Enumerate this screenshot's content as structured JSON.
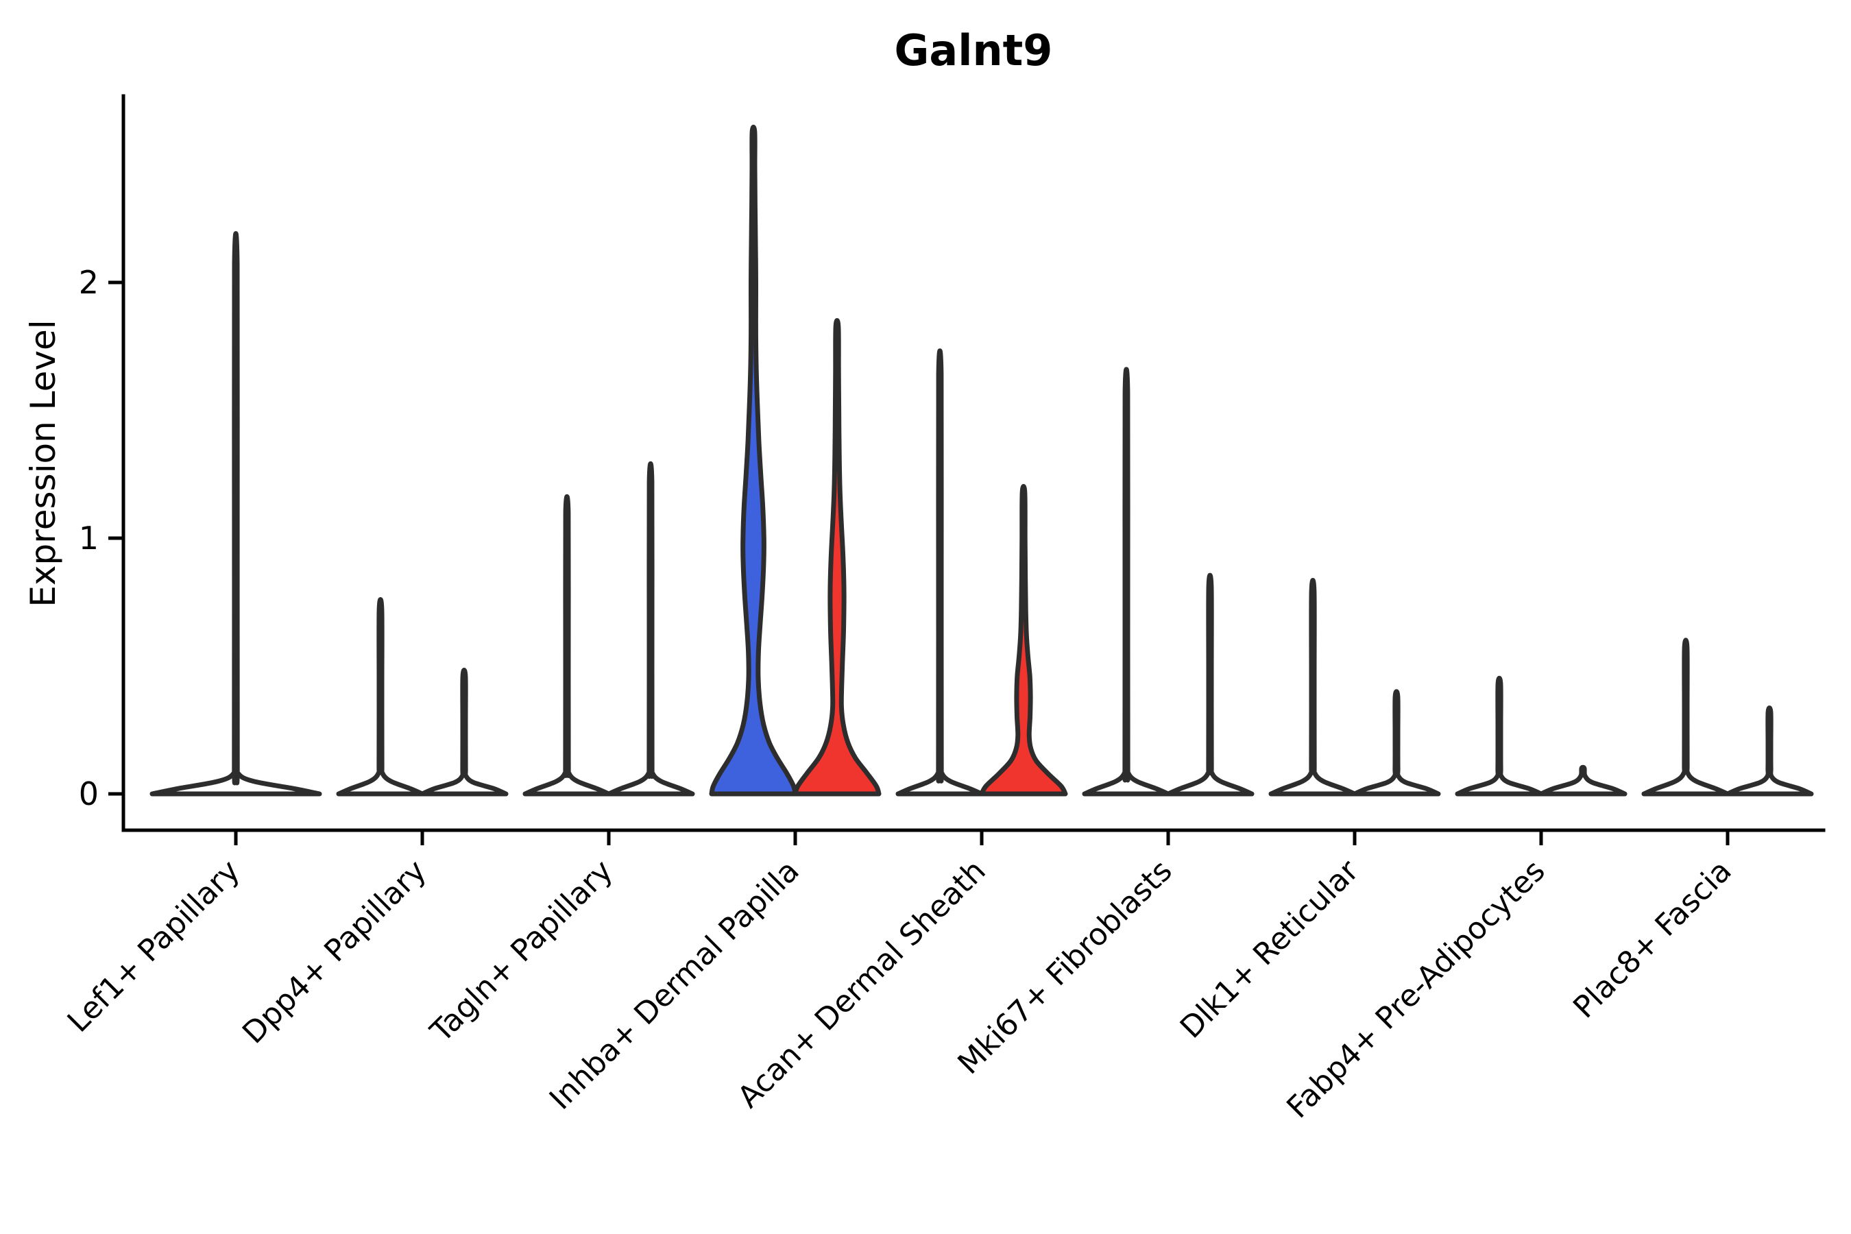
{
  "chart_data": {
    "type": "violin",
    "title": "Galnt9",
    "ylabel": "Expression Level",
    "xlabel": "",
    "ylim": [
      0,
      2.75
    ],
    "yticks": [
      "0",
      "1",
      "2"
    ],
    "ytick_values": [
      0,
      1,
      2
    ],
    "grid": false,
    "legend": null,
    "style": {
      "outline_color": "#2D2D2D",
      "axis_color": "#000000",
      "blue_fill": "#3E61DD",
      "red_fill": "#F0352F",
      "background": "#ffffff"
    },
    "categories": [
      {
        "label": "Lef1+ Papillary",
        "violins": [
          {
            "group": "center",
            "max": 2.07,
            "fill": "none",
            "width_factor": 2,
            "profile": [
              [
                0,
                1.0
              ],
              [
                0.02,
                0.7
              ],
              [
                0.05,
                0.2
              ],
              [
                0.08,
                0.028
              ],
              [
                0.13,
                0.018
              ],
              [
                1.1,
                0.017
              ],
              [
                2.07,
                0.016
              ]
            ]
          }
        ]
      },
      {
        "label": "Dpp4+ Papillary",
        "violins": [
          {
            "group": "left",
            "max": 0.72,
            "fill": "none",
            "width_factor": 1,
            "profile": [
              [
                0,
                1.0
              ],
              [
                0.02,
                0.72
              ],
              [
                0.05,
                0.24
              ],
              [
                0.08,
                0.05
              ],
              [
                0.12,
                0.034
              ],
              [
                0.4,
                0.032
              ],
              [
                0.72,
                0.031
              ]
            ]
          },
          {
            "group": "right",
            "max": 0.46,
            "fill": "none",
            "width_factor": 1,
            "profile": [
              [
                0,
                1.0
              ],
              [
                0.02,
                0.72
              ],
              [
                0.045,
                0.22
              ],
              [
                0.07,
                0.045
              ],
              [
                0.1,
                0.034
              ],
              [
                0.27,
                0.032
              ],
              [
                0.46,
                0.031
              ]
            ]
          }
        ]
      },
      {
        "label": "Tagln+ Papillary",
        "violins": [
          {
            "group": "left",
            "max": 1.1,
            "fill": "none",
            "width_factor": 1,
            "profile": [
              [
                0,
                1.0
              ],
              [
                0.02,
                0.72
              ],
              [
                0.05,
                0.24
              ],
              [
                0.08,
                0.05
              ],
              [
                0.12,
                0.034
              ],
              [
                0.6,
                0.032
              ],
              [
                1.1,
                0.031
              ]
            ]
          },
          {
            "group": "right",
            "max": 1.22,
            "fill": "none",
            "width_factor": 1,
            "profile": [
              [
                0,
                1.0
              ],
              [
                0.02,
                0.72
              ],
              [
                0.05,
                0.24
              ],
              [
                0.08,
                0.05
              ],
              [
                0.12,
                0.034
              ],
              [
                0.65,
                0.032
              ],
              [
                1.22,
                0.031
              ]
            ]
          }
        ]
      },
      {
        "label": "Inhba+ Dermal Papilla",
        "violins": [
          {
            "group": "left",
            "max": 2.59,
            "fill": "#3E61DD",
            "width_factor": 1,
            "profile": [
              [
                0,
                1.0
              ],
              [
                0.03,
                0.96
              ],
              [
                0.08,
                0.8
              ],
              [
                0.14,
                0.57
              ],
              [
                0.2,
                0.38
              ],
              [
                0.27,
                0.245
              ],
              [
                0.35,
                0.16
              ],
              [
                0.45,
                0.115
              ],
              [
                0.55,
                0.12
              ],
              [
                0.65,
                0.155
              ],
              [
                0.78,
                0.21
              ],
              [
                0.9,
                0.245
              ],
              [
                1.0,
                0.25
              ],
              [
                1.12,
                0.225
              ],
              [
                1.25,
                0.175
              ],
              [
                1.38,
                0.13
              ],
              [
                1.52,
                0.095
              ],
              [
                1.68,
                0.065
              ],
              [
                1.85,
                0.055
              ],
              [
                2.0,
                0.058
              ],
              [
                2.15,
                0.05
              ],
              [
                2.3,
                0.04
              ],
              [
                2.45,
                0.033
              ],
              [
                2.59,
                0.03
              ]
            ]
          },
          {
            "group": "right",
            "max": 1.83,
            "fill": "#F0352F",
            "width_factor": 1,
            "profile": [
              [
                0,
                1.0
              ],
              [
                0.03,
                0.94
              ],
              [
                0.08,
                0.72
              ],
              [
                0.14,
                0.44
              ],
              [
                0.2,
                0.26
              ],
              [
                0.27,
                0.15
              ],
              [
                0.34,
                0.105
              ],
              [
                0.42,
                0.11
              ],
              [
                0.52,
                0.13
              ],
              [
                0.64,
                0.155
              ],
              [
                0.78,
                0.165
              ],
              [
                0.92,
                0.145
              ],
              [
                1.05,
                0.105
              ],
              [
                1.18,
                0.07
              ],
              [
                1.32,
                0.052
              ],
              [
                1.5,
                0.042
              ],
              [
                1.66,
                0.036
              ],
              [
                1.83,
                0.03
              ]
            ]
          }
        ]
      },
      {
        "label": "Acan+ Dermal Sheath",
        "violins": [
          {
            "group": "left",
            "max": 1.64,
            "fill": "none",
            "width_factor": 1,
            "profile": [
              [
                0,
                1.0
              ],
              [
                0.02,
                0.72
              ],
              [
                0.05,
                0.24
              ],
              [
                0.08,
                0.05
              ],
              [
                0.12,
                0.034
              ],
              [
                0.9,
                0.032
              ],
              [
                1.64,
                0.031
              ]
            ]
          },
          {
            "group": "right",
            "max": 1.18,
            "fill": "#F0352F",
            "width_factor": 1,
            "profile": [
              [
                0,
                1.0
              ],
              [
                0.03,
                0.9
              ],
              [
                0.08,
                0.58
              ],
              [
                0.13,
                0.3
              ],
              [
                0.18,
                0.17
              ],
              [
                0.23,
                0.135
              ],
              [
                0.3,
                0.155
              ],
              [
                0.38,
                0.165
              ],
              [
                0.46,
                0.15
              ],
              [
                0.54,
                0.105
              ],
              [
                0.62,
                0.07
              ],
              [
                0.72,
                0.052
              ],
              [
                0.85,
                0.042
              ],
              [
                1.0,
                0.036
              ],
              [
                1.18,
                0.03
              ]
            ]
          }
        ]
      },
      {
        "label": "Mki67+ Fibroblasts",
        "violins": [
          {
            "group": "left",
            "max": 1.57,
            "fill": "none",
            "width_factor": 1,
            "profile": [
              [
                0,
                1.0
              ],
              [
                0.02,
                0.72
              ],
              [
                0.05,
                0.24
              ],
              [
                0.08,
                0.05
              ],
              [
                0.12,
                0.034
              ],
              [
                0.85,
                0.032
              ],
              [
                1.57,
                0.031
              ]
            ]
          },
          {
            "group": "right",
            "max": 0.81,
            "fill": "none",
            "width_factor": 1,
            "profile": [
              [
                0,
                1.0
              ],
              [
                0.02,
                0.72
              ],
              [
                0.05,
                0.24
              ],
              [
                0.08,
                0.05
              ],
              [
                0.12,
                0.034
              ],
              [
                0.45,
                0.032
              ],
              [
                0.81,
                0.031
              ]
            ]
          }
        ]
      },
      {
        "label": "Dlk1+ Reticular",
        "violins": [
          {
            "group": "left",
            "max": 0.79,
            "fill": "none",
            "width_factor": 1,
            "profile": [
              [
                0,
                1.0
              ],
              [
                0.02,
                0.72
              ],
              [
                0.05,
                0.24
              ],
              [
                0.08,
                0.05
              ],
              [
                0.12,
                0.034
              ],
              [
                0.43,
                0.032
              ],
              [
                0.79,
                0.031
              ]
            ]
          },
          {
            "group": "right",
            "max": 0.38,
            "fill": "none",
            "width_factor": 1,
            "profile": [
              [
                0,
                1.0
              ],
              [
                0.02,
                0.72
              ],
              [
                0.045,
                0.22
              ],
              [
                0.07,
                0.045
              ],
              [
                0.1,
                0.034
              ],
              [
                0.22,
                0.032
              ],
              [
                0.38,
                0.031
              ]
            ]
          }
        ]
      },
      {
        "label": "Fabp4+ Pre-Adipocytes",
        "violins": [
          {
            "group": "left",
            "max": 0.43,
            "fill": "none",
            "width_factor": 1,
            "profile": [
              [
                0,
                1.0
              ],
              [
                0.02,
                0.72
              ],
              [
                0.045,
                0.22
              ],
              [
                0.07,
                0.045
              ],
              [
                0.1,
                0.034
              ],
              [
                0.25,
                0.032
              ],
              [
                0.43,
                0.031
              ]
            ]
          },
          {
            "group": "right",
            "max": 0.1,
            "fill": "none",
            "width_factor": 1,
            "profile": [
              [
                0,
                1.0
              ],
              [
                0.02,
                0.72
              ],
              [
                0.045,
                0.22
              ],
              [
                0.07,
                0.05
              ],
              [
                0.1,
                0.031
              ]
            ]
          }
        ]
      },
      {
        "label": "Plac8+ Fascia",
        "violins": [
          {
            "group": "left",
            "max": 0.57,
            "fill": "none",
            "width_factor": 1,
            "profile": [
              [
                0,
                1.0
              ],
              [
                0.02,
                0.72
              ],
              [
                0.05,
                0.24
              ],
              [
                0.08,
                0.05
              ],
              [
                0.12,
                0.034
              ],
              [
                0.32,
                0.032
              ],
              [
                0.57,
                0.031
              ]
            ]
          },
          {
            "group": "right",
            "max": 0.32,
            "fill": "none",
            "width_factor": 1,
            "profile": [
              [
                0,
                1.0
              ],
              [
                0.02,
                0.72
              ],
              [
                0.045,
                0.22
              ],
              [
                0.07,
                0.045
              ],
              [
                0.1,
                0.034
              ],
              [
                0.19,
                0.032
              ],
              [
                0.32,
                0.031
              ]
            ]
          }
        ]
      }
    ]
  }
}
